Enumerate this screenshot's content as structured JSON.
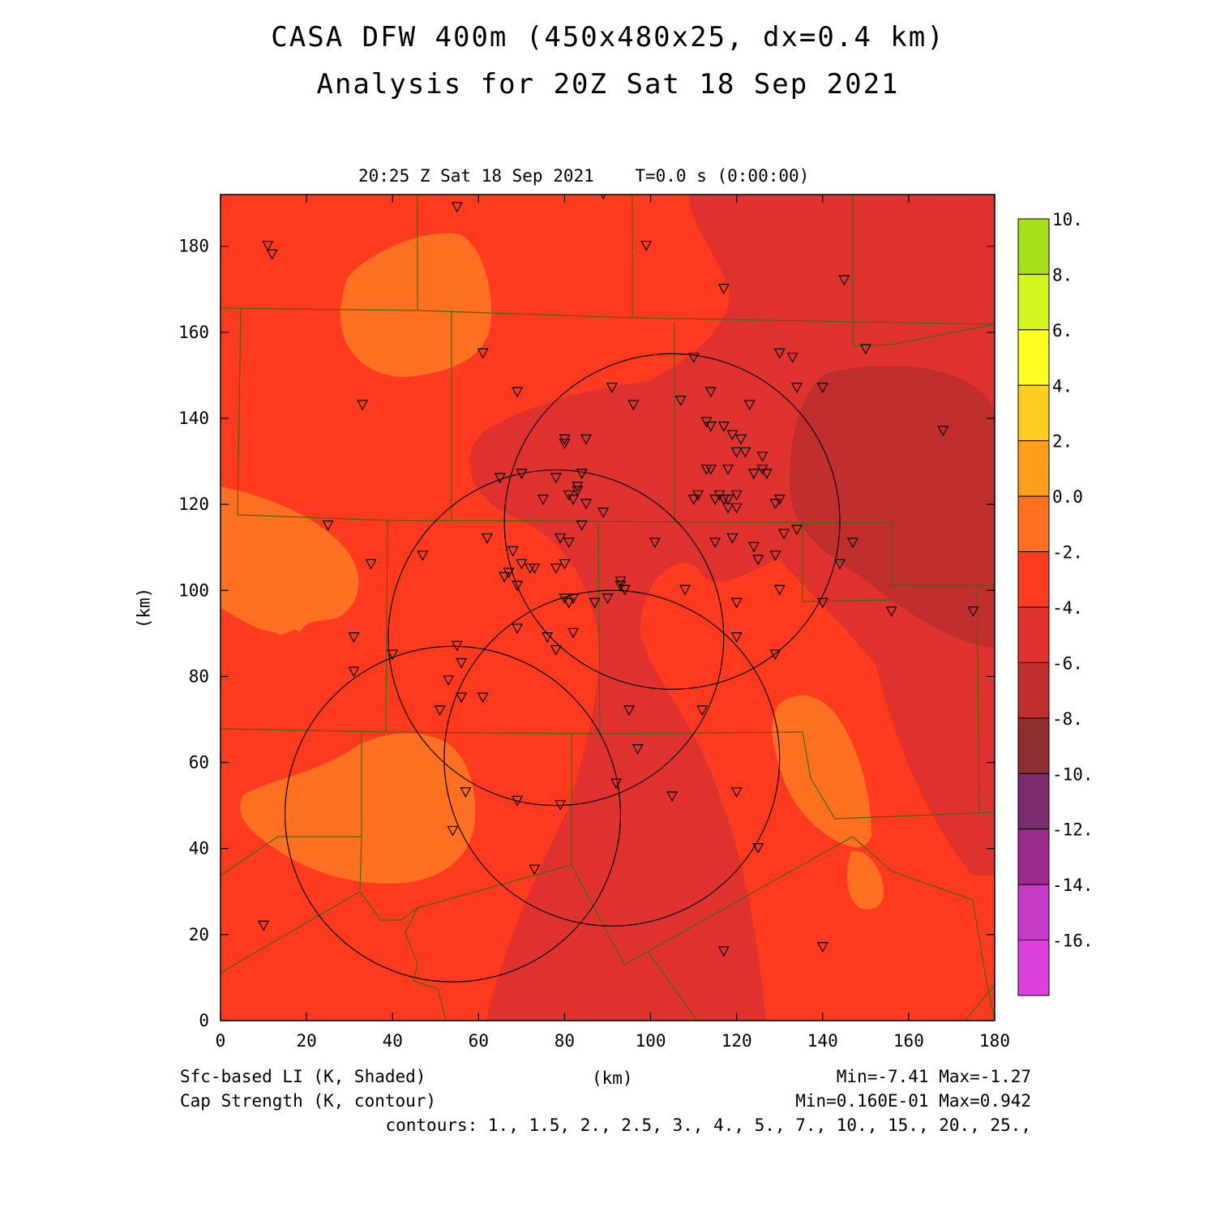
{
  "title_line1": "CASA DFW 400m (450x480x25, dx=0.4 km)",
  "title_line2": "Analysis for 20Z Sat 18 Sep 2021",
  "plot_time": "20:25 Z Sat 18 Sep 2021    T=0.0 s (0:00:00)",
  "axes": {
    "x_label": "(km)",
    "y_label": "(km)",
    "x_range": [
      0,
      180
    ],
    "y_range": [
      0,
      192
    ],
    "x_ticks": [
      "0",
      "20",
      "40",
      "60",
      "80",
      "100",
      "120",
      "140",
      "160",
      "180"
    ],
    "y_ticks": [
      "0",
      "20",
      "40",
      "60",
      "80",
      "100",
      "120",
      "140",
      "160",
      "180"
    ]
  },
  "footer": {
    "field1": "Sfc-based LI (K, Shaded)",
    "field2": "Cap Strength (K, contour)",
    "minmax1": "Min=-7.41 Max=-1.27",
    "minmax2": "Min=0.160E-01 Max=0.942",
    "contours": "contours: 1., 1.5, 2., 2.5, 3., 4., 5., 7., 10., 15., 20., 25.,"
  },
  "colorbar": {
    "labels": [
      "10.",
      "8.",
      "6.",
      "4.",
      "2.",
      "0.0",
      "-2.",
      "-4.",
      "-6.",
      "-8.",
      "-10.",
      "-12.",
      "-14.",
      "-16."
    ],
    "colors": [
      "#a6e21a",
      "#d4f51e",
      "#ffff22",
      "#ffcc22",
      "#ff9e1a",
      "#ff7020",
      "#ff3a1e",
      "#e0322e",
      "#c02e2e",
      "#8e2e2e",
      "#7a2c6e",
      "#9a2c8e",
      "#c63cc6",
      "#de40de"
    ]
  },
  "map_colors": {
    "base": "#ff3a1e",
    "orange": "#ff7020",
    "red2": "#e0322e",
    "red3": "#c02e2e",
    "county": "#406a10"
  },
  "stations": [
    [
      89,
      192
    ],
    [
      55,
      189
    ],
    [
      11,
      180
    ],
    [
      12,
      178
    ],
    [
      99,
      180
    ],
    [
      117,
      170
    ],
    [
      145,
      172
    ],
    [
      150,
      156
    ],
    [
      61,
      155
    ],
    [
      33,
      143
    ],
    [
      69,
      146
    ],
    [
      91,
      147
    ],
    [
      96,
      143
    ],
    [
      110,
      154
    ],
    [
      130,
      155
    ],
    [
      133,
      154
    ],
    [
      134,
      147
    ],
    [
      140,
      147
    ],
    [
      168,
      137
    ],
    [
      107,
      144
    ],
    [
      114,
      146
    ],
    [
      123,
      143
    ],
    [
      113,
      139
    ],
    [
      114,
      138
    ],
    [
      117,
      138
    ],
    [
      119,
      136
    ],
    [
      121,
      135
    ],
    [
      80,
      135
    ],
    [
      80,
      134
    ],
    [
      85,
      135
    ],
    [
      120,
      132
    ],
    [
      122,
      132
    ],
    [
      126,
      131
    ],
    [
      113,
      128
    ],
    [
      114,
      128
    ],
    [
      118,
      128
    ],
    [
      126,
      128
    ],
    [
      127,
      127
    ],
    [
      124,
      127
    ],
    [
      65,
      126
    ],
    [
      70,
      127
    ],
    [
      78,
      126
    ],
    [
      84,
      127
    ],
    [
      81,
      122
    ],
    [
      83,
      124
    ],
    [
      83,
      123
    ],
    [
      82,
      121
    ],
    [
      75,
      121
    ],
    [
      85,
      120
    ],
    [
      89,
      118
    ],
    [
      111,
      122
    ],
    [
      110,
      121
    ],
    [
      115,
      121
    ],
    [
      116,
      122
    ],
    [
      117,
      121
    ],
    [
      118,
      121
    ],
    [
      120,
      122
    ],
    [
      118,
      119
    ],
    [
      120,
      119
    ],
    [
      130,
      121
    ],
    [
      129,
      120
    ],
    [
      134,
      114
    ],
    [
      131,
      113
    ],
    [
      25,
      115
    ],
    [
      62,
      112
    ],
    [
      79,
      112
    ],
    [
      81,
      111
    ],
    [
      84,
      115
    ],
    [
      101,
      111
    ],
    [
      115,
      111
    ],
    [
      119,
      112
    ],
    [
      124,
      110
    ],
    [
      125,
      107
    ],
    [
      129,
      108
    ],
    [
      147,
      111
    ],
    [
      144,
      106
    ],
    [
      35,
      106
    ],
    [
      47,
      108
    ],
    [
      66,
      103
    ],
    [
      67,
      104
    ],
    [
      68,
      109
    ],
    [
      70,
      106
    ],
    [
      72,
      105
    ],
    [
      73,
      105
    ],
    [
      78,
      105
    ],
    [
      80,
      106
    ],
    [
      69,
      101
    ],
    [
      80,
      98
    ],
    [
      81,
      97
    ],
    [
      82,
      98
    ],
    [
      87,
      97
    ],
    [
      90,
      98
    ],
    [
      93,
      102
    ],
    [
      93,
      101
    ],
    [
      94,
      100
    ],
    [
      108,
      100
    ],
    [
      130,
      100
    ],
    [
      140,
      97
    ],
    [
      120,
      97
    ],
    [
      156,
      95
    ],
    [
      175,
      95
    ],
    [
      31,
      89
    ],
    [
      31,
      81
    ],
    [
      40,
      85
    ],
    [
      55,
      87
    ],
    [
      56,
      83
    ],
    [
      53,
      79
    ],
    [
      56,
      75
    ],
    [
      61,
      75
    ],
    [
      51,
      72
    ],
    [
      69,
      91
    ],
    [
      76,
      89
    ],
    [
      78,
      86
    ],
    [
      82,
      90
    ],
    [
      120,
      89
    ],
    [
      129,
      85
    ],
    [
      95,
      72
    ],
    [
      112,
      72
    ],
    [
      97,
      63
    ],
    [
      92,
      55
    ],
    [
      105,
      52
    ],
    [
      120,
      53
    ],
    [
      57,
      53
    ],
    [
      69,
      51
    ],
    [
      79,
      50
    ],
    [
      54,
      44
    ],
    [
      125,
      40
    ],
    [
      73,
      35
    ],
    [
      10,
      22
    ],
    [
      117,
      16
    ],
    [
      140,
      17
    ]
  ],
  "rings": [
    {
      "cx": 105,
      "cy": 116,
      "r": 39
    },
    {
      "cx": 78,
      "cy": 89,
      "r": 39
    },
    {
      "cx": 91,
      "cy": 61,
      "r": 39
    },
    {
      "cx": 54,
      "cy": 48,
      "r": 39
    }
  ]
}
